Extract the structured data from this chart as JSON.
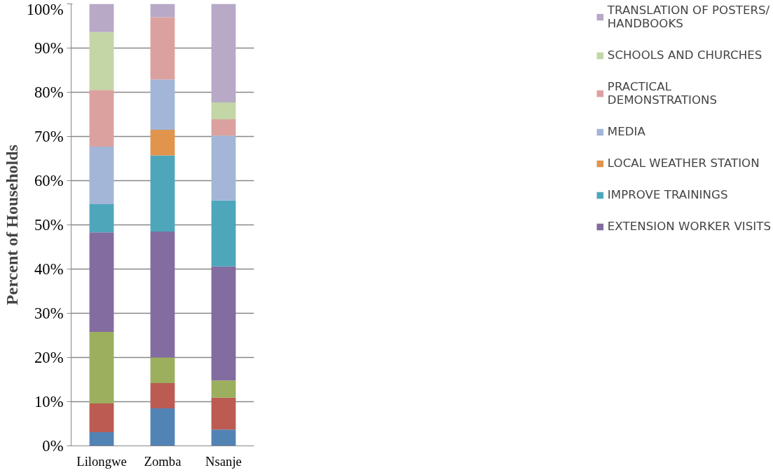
{
  "chart_data": {
    "type": "bar",
    "stacked": true,
    "ylabel": "Percent of Households",
    "categories": [
      "Lilongwe",
      "Zomba",
      "Nsanje"
    ],
    "series": [
      {
        "color": "#5283b5",
        "values": [
          3.1,
          8.5,
          3.7
        ]
      },
      {
        "color": "#bb5b52",
        "values": [
          6.5,
          5.7,
          7.2
        ]
      },
      {
        "color": "#9baf5e",
        "values": [
          16.2,
          5.8,
          3.9
        ]
      },
      {
        "name": "EXTENSION WORKER VISITS",
        "color": "#836ca0",
        "values": [
          22.5,
          28.5,
          25.8
        ]
      },
      {
        "name": "IMPROVE TRAININGS",
        "color": "#4ea6bb",
        "values": [
          6.4,
          17.2,
          14.9
        ]
      },
      {
        "name": "LOCAL WEATHER STATION",
        "color": "#e0944c",
        "values": [
          0,
          5.8,
          0
        ]
      },
      {
        "name": "MEDIA",
        "color": "#a3b6d7",
        "values": [
          13.0,
          11.4,
          14.7
        ]
      },
      {
        "name": "PRACTICAL DEMONSTRATIONS",
        "color": "#dba19f",
        "values": [
          12.8,
          14.1,
          3.7
        ]
      },
      {
        "name": "SCHOOLS AND CHURCHES",
        "color": "#c4d5a6",
        "values": [
          13.1,
          0,
          3.8
        ]
      },
      {
        "name": "TRANSLATION OF POSTERS/ HANDBOOKS",
        "color": "#b8a9c7",
        "values": [
          6.4,
          3.0,
          22.3
        ]
      }
    ],
    "ylim": [
      0,
      100
    ],
    "yticks": [
      {
        "value": 0,
        "label": "0%"
      },
      {
        "value": 10,
        "label": "10%"
      },
      {
        "value": 20,
        "label": "20%"
      },
      {
        "value": 30,
        "label": "30%"
      },
      {
        "value": 40,
        "label": "40%"
      },
      {
        "value": 50,
        "label": "50%"
      },
      {
        "value": 60,
        "label": "60%"
      },
      {
        "value": 70,
        "label": "70%"
      },
      {
        "value": 80,
        "label": "80%"
      },
      {
        "value": 90,
        "label": "90%"
      },
      {
        "value": 100,
        "label": "100%"
      }
    ],
    "grid": "y",
    "legend": "right"
  }
}
